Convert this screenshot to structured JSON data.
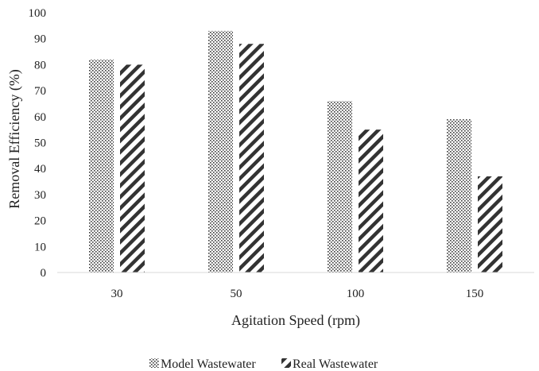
{
  "chart_data": {
    "type": "bar",
    "categories": [
      "30",
      "50",
      "100",
      "150"
    ],
    "series": [
      {
        "name": "Model Wastewater",
        "values": [
          82,
          93,
          66,
          59
        ],
        "pattern": "dotted"
      },
      {
        "name": "Real Wastewater",
        "values": [
          80,
          88,
          55,
          37
        ],
        "pattern": "diagonal-hatch"
      }
    ],
    "xlabel": "Agitation Speed (rpm)",
    "ylabel": "Removal Efficiency (%)",
    "ylim": [
      0,
      100
    ],
    "yticks": [
      "0",
      "10",
      "20",
      "30",
      "40",
      "50",
      "60",
      "70",
      "80",
      "90",
      "100"
    ],
    "grid": false,
    "legend_position": "bottom",
    "colors": {
      "bar_pattern": "#3a3a3a",
      "axis": "#d9d9d9",
      "text": "#222222"
    }
  }
}
